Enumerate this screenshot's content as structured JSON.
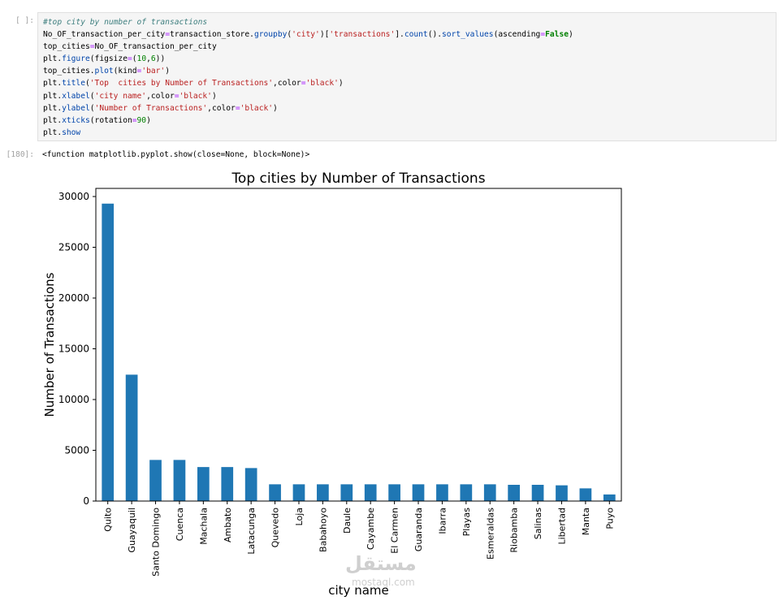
{
  "notebook": {
    "input_prompt": "[ ]:",
    "output_prompt": "[180]:",
    "code_lines": [
      [
        {
          "t": "#top city by number of transactions",
          "c": "comment"
        }
      ],
      [
        {
          "t": "No_OF_transaction_per_city",
          "c": ""
        },
        {
          "t": "=",
          "c": "op"
        },
        {
          "t": "transaction_store.",
          "c": ""
        },
        {
          "t": "groupby",
          "c": "method"
        },
        {
          "t": "(",
          "c": ""
        },
        {
          "t": "'city'",
          "c": "string"
        },
        {
          "t": ")[",
          "c": ""
        },
        {
          "t": "'transactions'",
          "c": "string"
        },
        {
          "t": "].",
          "c": ""
        },
        {
          "t": "count",
          "c": "method"
        },
        {
          "t": "().",
          "c": ""
        },
        {
          "t": "sort_values",
          "c": "method"
        },
        {
          "t": "(ascending",
          "c": ""
        },
        {
          "t": "=",
          "c": "op"
        },
        {
          "t": "False",
          "c": "kw"
        },
        {
          "t": ")",
          "c": ""
        }
      ],
      [
        {
          "t": "top_cities",
          "c": ""
        },
        {
          "t": "=",
          "c": "op"
        },
        {
          "t": "No_OF_transaction_per_city",
          "c": ""
        }
      ],
      [
        {
          "t": "plt.",
          "c": ""
        },
        {
          "t": "figure",
          "c": "method"
        },
        {
          "t": "(figsize",
          "c": ""
        },
        {
          "t": "=",
          "c": "op"
        },
        {
          "t": "(",
          "c": ""
        },
        {
          "t": "10",
          "c": "num"
        },
        {
          "t": ",",
          "c": ""
        },
        {
          "t": "6",
          "c": "num"
        },
        {
          "t": "))",
          "c": ""
        }
      ],
      [
        {
          "t": "top_cities.",
          "c": ""
        },
        {
          "t": "plot",
          "c": "method"
        },
        {
          "t": "(kind",
          "c": ""
        },
        {
          "t": "=",
          "c": "op"
        },
        {
          "t": "'bar'",
          "c": "string"
        },
        {
          "t": ")",
          "c": ""
        }
      ],
      [
        {
          "t": "plt.",
          "c": ""
        },
        {
          "t": "title",
          "c": "method"
        },
        {
          "t": "(",
          "c": ""
        },
        {
          "t": "'Top  cities by Number of Transactions'",
          "c": "string"
        },
        {
          "t": ",color",
          "c": ""
        },
        {
          "t": "=",
          "c": "op"
        },
        {
          "t": "'black'",
          "c": "string"
        },
        {
          "t": ")",
          "c": ""
        }
      ],
      [
        {
          "t": "plt.",
          "c": ""
        },
        {
          "t": "xlabel",
          "c": "method"
        },
        {
          "t": "(",
          "c": ""
        },
        {
          "t": "'city name'",
          "c": "string"
        },
        {
          "t": ",color",
          "c": ""
        },
        {
          "t": "=",
          "c": "op"
        },
        {
          "t": "'black'",
          "c": "string"
        },
        {
          "t": ")",
          "c": ""
        }
      ],
      [
        {
          "t": "plt.",
          "c": ""
        },
        {
          "t": "ylabel",
          "c": "method"
        },
        {
          "t": "(",
          "c": ""
        },
        {
          "t": "'Number of Transactions'",
          "c": "string"
        },
        {
          "t": ",color",
          "c": ""
        },
        {
          "t": "=",
          "c": "op"
        },
        {
          "t": "'black'",
          "c": "string"
        },
        {
          "t": ")",
          "c": ""
        }
      ],
      [
        {
          "t": "plt.",
          "c": ""
        },
        {
          "t": "xticks",
          "c": "method"
        },
        {
          "t": "(rotation",
          "c": ""
        },
        {
          "t": "=",
          "c": "op"
        },
        {
          "t": "90",
          "c": "num"
        },
        {
          "t": ")",
          "c": ""
        }
      ],
      [
        {
          "t": "plt.",
          "c": ""
        },
        {
          "t": "show",
          "c": "method"
        }
      ]
    ],
    "output_text": "<function matplotlib.pyplot.show(close=None, block=None)>"
  },
  "chart_data": {
    "type": "bar",
    "title": "Top  cities by Number of Transactions",
    "xlabel": "city name",
    "ylabel": "Number of Transactions",
    "ylim": [
      0,
      30800
    ],
    "yticks": [
      0,
      5000,
      10000,
      15000,
      20000,
      25000,
      30000
    ],
    "bar_color": "#1f77b4",
    "grid": false,
    "categories": [
      "Quito",
      "Guayaquil",
      "Santo Domingo",
      "Cuenca",
      "Machala",
      "Ambato",
      "Latacunga",
      "Quevedo",
      "Loja",
      "Babahoyo",
      "Daule",
      "Cayambe",
      "El Carmen",
      "Guaranda",
      "Ibarra",
      "Playas",
      "Esmeraldas",
      "Riobamba",
      "Salinas",
      "Libertad",
      "Manta",
      "Puyo"
    ],
    "values": [
      29300,
      12450,
      4050,
      4050,
      3350,
      3350,
      3250,
      1650,
      1650,
      1650,
      1650,
      1650,
      1650,
      1650,
      1650,
      1650,
      1650,
      1600,
      1600,
      1550,
      1250,
      650
    ]
  },
  "watermark": {
    "arabic": "مستقل",
    "latin": "mostaql.com"
  }
}
